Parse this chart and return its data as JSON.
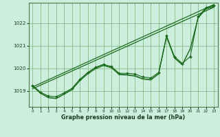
{
  "xlabel": "Graphe pression niveau de la mer (hPa)",
  "background_color": "#cceedd",
  "grid_color": "#88bb88",
  "line_color": "#1a6b1a",
  "ylim": [
    1018.3,
    1022.9
  ],
  "xlim": [
    -0.5,
    23.5
  ],
  "yticks": [
    1019,
    1020,
    1021,
    1022
  ],
  "xticks": [
    0,
    1,
    2,
    3,
    4,
    5,
    6,
    7,
    8,
    9,
    10,
    11,
    12,
    13,
    14,
    15,
    16,
    17,
    18,
    19,
    20,
    21,
    22,
    23
  ],
  "main_series": {
    "x": [
      0,
      1,
      2,
      3,
      4,
      5,
      6,
      7,
      8,
      9,
      10,
      11,
      12,
      13,
      14,
      15,
      16,
      17,
      18,
      19,
      20,
      21,
      22,
      23
    ],
    "y": [
      1019.25,
      1018.95,
      1018.78,
      1018.75,
      1018.92,
      1019.12,
      1019.52,
      1019.82,
      1020.05,
      1020.18,
      1020.08,
      1019.78,
      1019.78,
      1019.75,
      1019.62,
      1019.58,
      1019.82,
      1021.45,
      1020.52,
      1020.22,
      1020.52,
      1022.28,
      1022.68,
      1022.78
    ]
  },
  "series2": {
    "x": [
      0,
      1,
      2,
      3,
      4,
      5,
      6,
      7,
      8,
      9,
      10,
      11,
      12,
      13,
      14,
      15,
      16,
      17,
      18,
      19,
      20,
      21,
      22,
      23
    ],
    "y": [
      1019.22,
      1018.92,
      1018.72,
      1018.68,
      1018.88,
      1019.08,
      1019.48,
      1019.78,
      1020.02,
      1020.15,
      1020.05,
      1019.75,
      1019.72,
      1019.68,
      1019.55,
      1019.52,
      1019.78,
      1021.42,
      1020.48,
      1020.18,
      1020.88,
      1022.25,
      1022.65,
      1022.75
    ]
  },
  "series3": {
    "x": [
      0,
      1,
      2,
      3,
      4,
      5,
      6,
      7,
      8,
      9,
      10,
      11,
      12,
      13,
      14,
      15,
      16,
      17,
      18,
      19,
      20,
      21,
      22,
      23
    ],
    "y": [
      1019.2,
      1018.9,
      1018.7,
      1018.66,
      1018.85,
      1019.05,
      1019.45,
      1019.75,
      1019.98,
      1020.12,
      1020.02,
      1019.72,
      1019.7,
      1019.65,
      1019.52,
      1019.48,
      1019.75,
      1021.38,
      1020.45,
      1020.15,
      1020.85,
      1022.22,
      1022.62,
      1022.72
    ]
  },
  "trend1": {
    "x": [
      0,
      23
    ],
    "y": [
      1019.18,
      1022.82
    ]
  },
  "trend2": {
    "x": [
      0,
      23
    ],
    "y": [
      1019.1,
      1022.7
    ]
  }
}
